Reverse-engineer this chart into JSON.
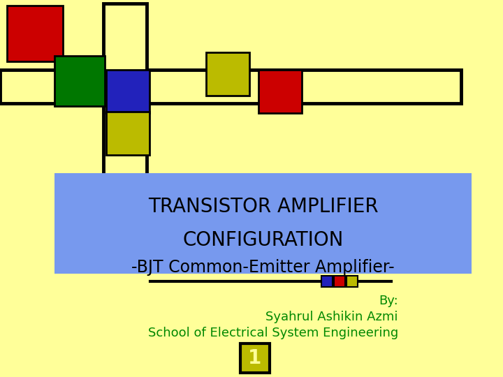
{
  "bg_color": "#FFFF99",
  "title_line1": "TRANSISTOR AMPLIFIER",
  "title_line2": "CONFIGURATION",
  "title_line3": "-BJT Common-Emitter Amplifier-",
  "title_bg_color": "#7799EE",
  "title_text_color": "#000000",
  "by_line": "By:",
  "author_line": "Syahrul Ashikin Azmi",
  "school_line": "School of Electrical System Engineering",
  "author_color": "#008800",
  "slide_num": "1",
  "slide_num_bg": "#BBBB00",
  "slide_num_color": "#FFFF99",
  "red_color": "#CC0000",
  "green_color": "#007700",
  "blue_color": "#2222BB",
  "yellow_color": "#BBBB00",
  "black_color": "#000000",
  "white_color": "#FFFF99"
}
